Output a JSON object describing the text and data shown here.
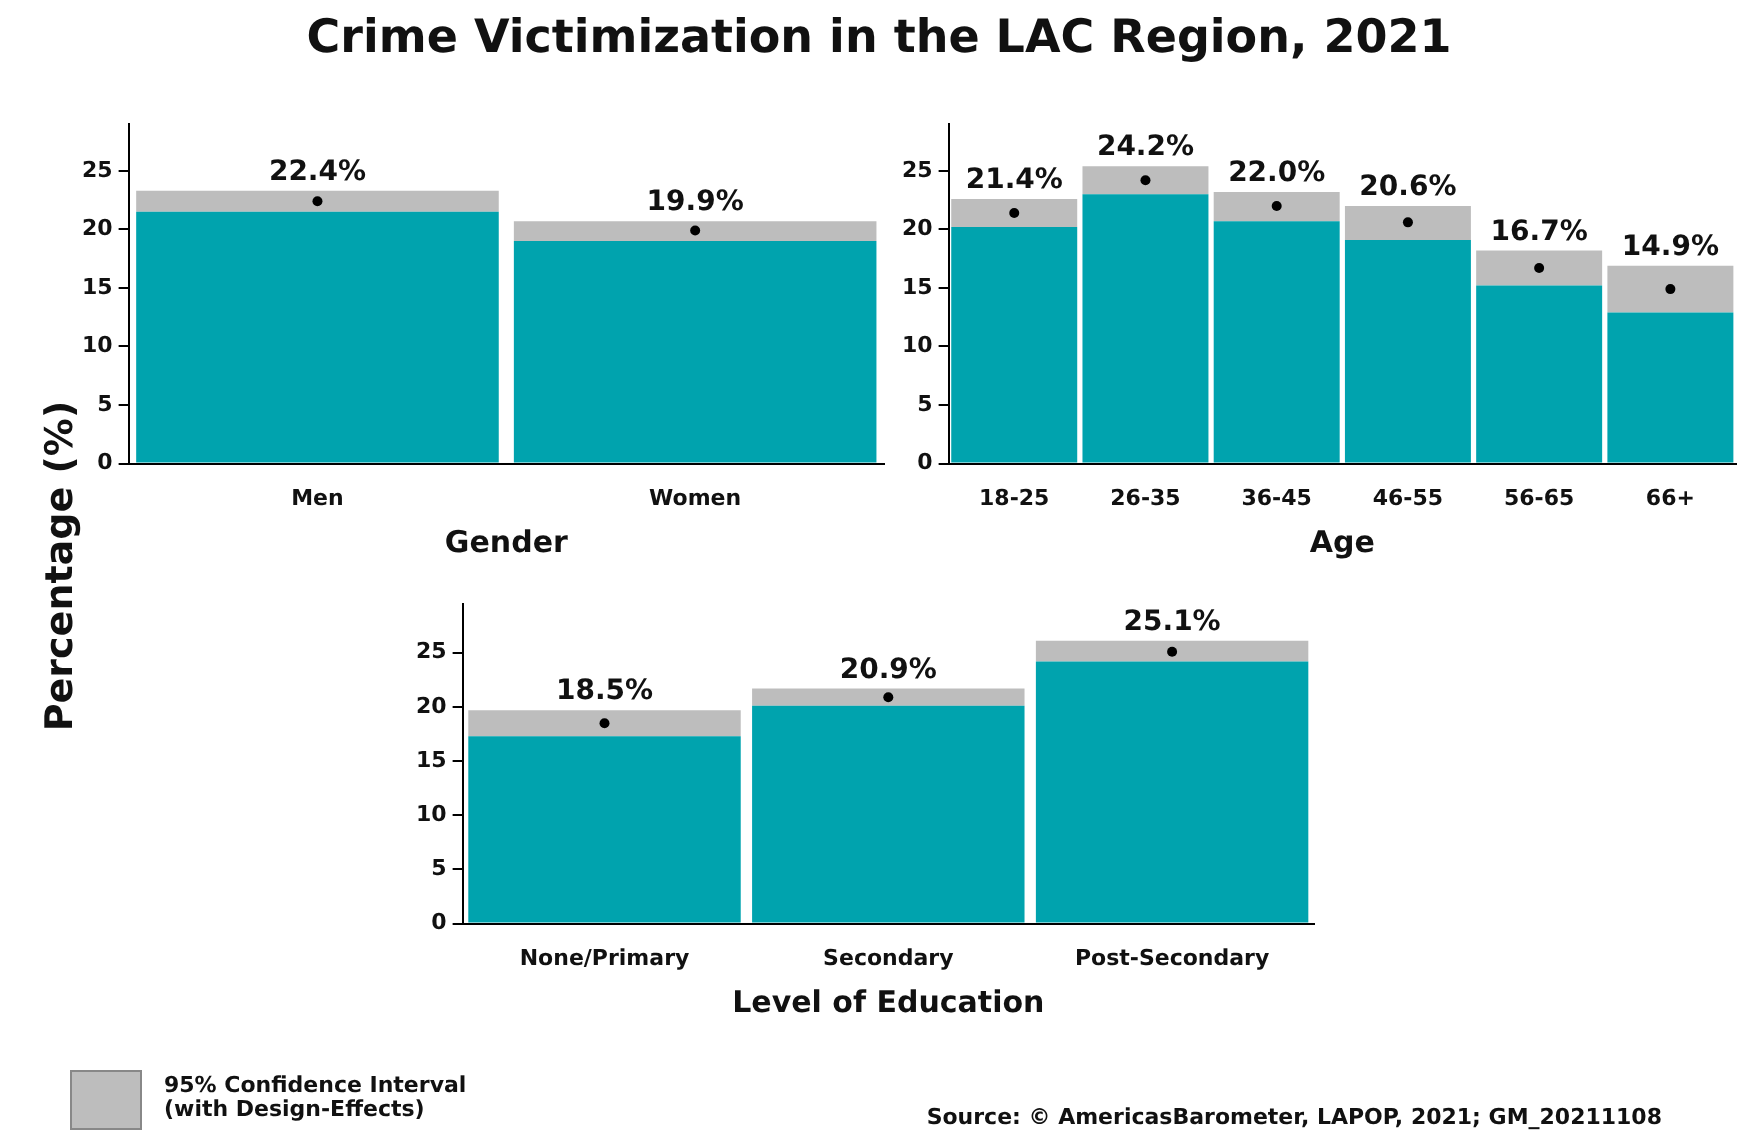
{
  "chart_data": [
    {
      "type": "bar",
      "stacked": true,
      "title": "Crime Victimization in the LAC Region, 2021",
      "ylabel": "Percentage (%)",
      "xlabel": "Gender",
      "categories": [
        "Men",
        "Women"
      ],
      "ylim": [
        0,
        29
      ],
      "yticks": [
        0,
        5,
        10,
        15,
        20,
        25
      ],
      "grid": false,
      "series": [
        {
          "color": "#00a3ae",
          "values": [
            21.5,
            19.0
          ]
        },
        {
          "color": "#bdbdbd",
          "values": [
            1.8,
            1.7
          ]
        },
        {
          "type": "scatter",
          "marker": "circle",
          "color": "#000000",
          "x": [
            "Men",
            "Women"
          ],
          "values": [
            22.4,
            19.9
          ],
          "value_labels": [
            "22.4%",
            "19.9%"
          ]
        }
      ],
      "annotations": [
        "95% Confidence Interval\n(with Design-Effects)",
        "Source: © AmericasBarometer, LAPOP, 2021; GM_20211108"
      ]
    },
    {
      "type": "bar",
      "stacked": true,
      "xlabel": "Age",
      "categories": [
        "18-25",
        "26-35",
        "36-45",
        "46-55",
        "56-65",
        "66+"
      ],
      "ylim": [
        0,
        29
      ],
      "yticks": [
        0,
        5,
        10,
        15,
        20,
        25
      ],
      "grid": false,
      "series": [
        {
          "color": "#00a3ae",
          "values": [
            20.2,
            23.0,
            20.7,
            19.1,
            15.2,
            12.9
          ]
        },
        {
          "color": "#bdbdbd",
          "values": [
            2.4,
            2.4,
            2.5,
            2.9,
            3.0,
            4.0
          ]
        },
        {
          "type": "scatter",
          "marker": "circle",
          "color": "#000000",
          "x": [
            "18-25",
            "26-35",
            "36-45",
            "46-55",
            "56-65",
            "66+"
          ],
          "values": [
            21.4,
            24.2,
            22.0,
            20.6,
            16.7,
            14.9
          ],
          "value_labels": [
            "21.4%",
            "24.2%",
            "22.0%",
            "20.6%",
            "16.7%",
            "14.9%"
          ]
        }
      ]
    },
    {
      "type": "bar",
      "stacked": true,
      "xlabel": "Level of Education",
      "categories": [
        "None/Primary",
        "Secondary",
        "Post-Secondary"
      ],
      "ylim": [
        0,
        29.5
      ],
      "yticks": [
        0,
        5,
        10,
        15,
        20,
        25
      ],
      "grid": false,
      "series": [
        {
          "color": "#00a3ae",
          "values": [
            17.3,
            20.1,
            24.2
          ]
        },
        {
          "color": "#bdbdbd",
          "values": [
            2.4,
            1.6,
            1.9
          ]
        },
        {
          "type": "scatter",
          "marker": "circle",
          "color": "#000000",
          "x": [
            "None/Primary",
            "Secondary",
            "Post-Secondary"
          ],
          "values": [
            18.5,
            20.9,
            25.1
          ],
          "value_labels": [
            "18.5%",
            "20.9%",
            "25.1%"
          ]
        }
      ]
    }
  ]
}
